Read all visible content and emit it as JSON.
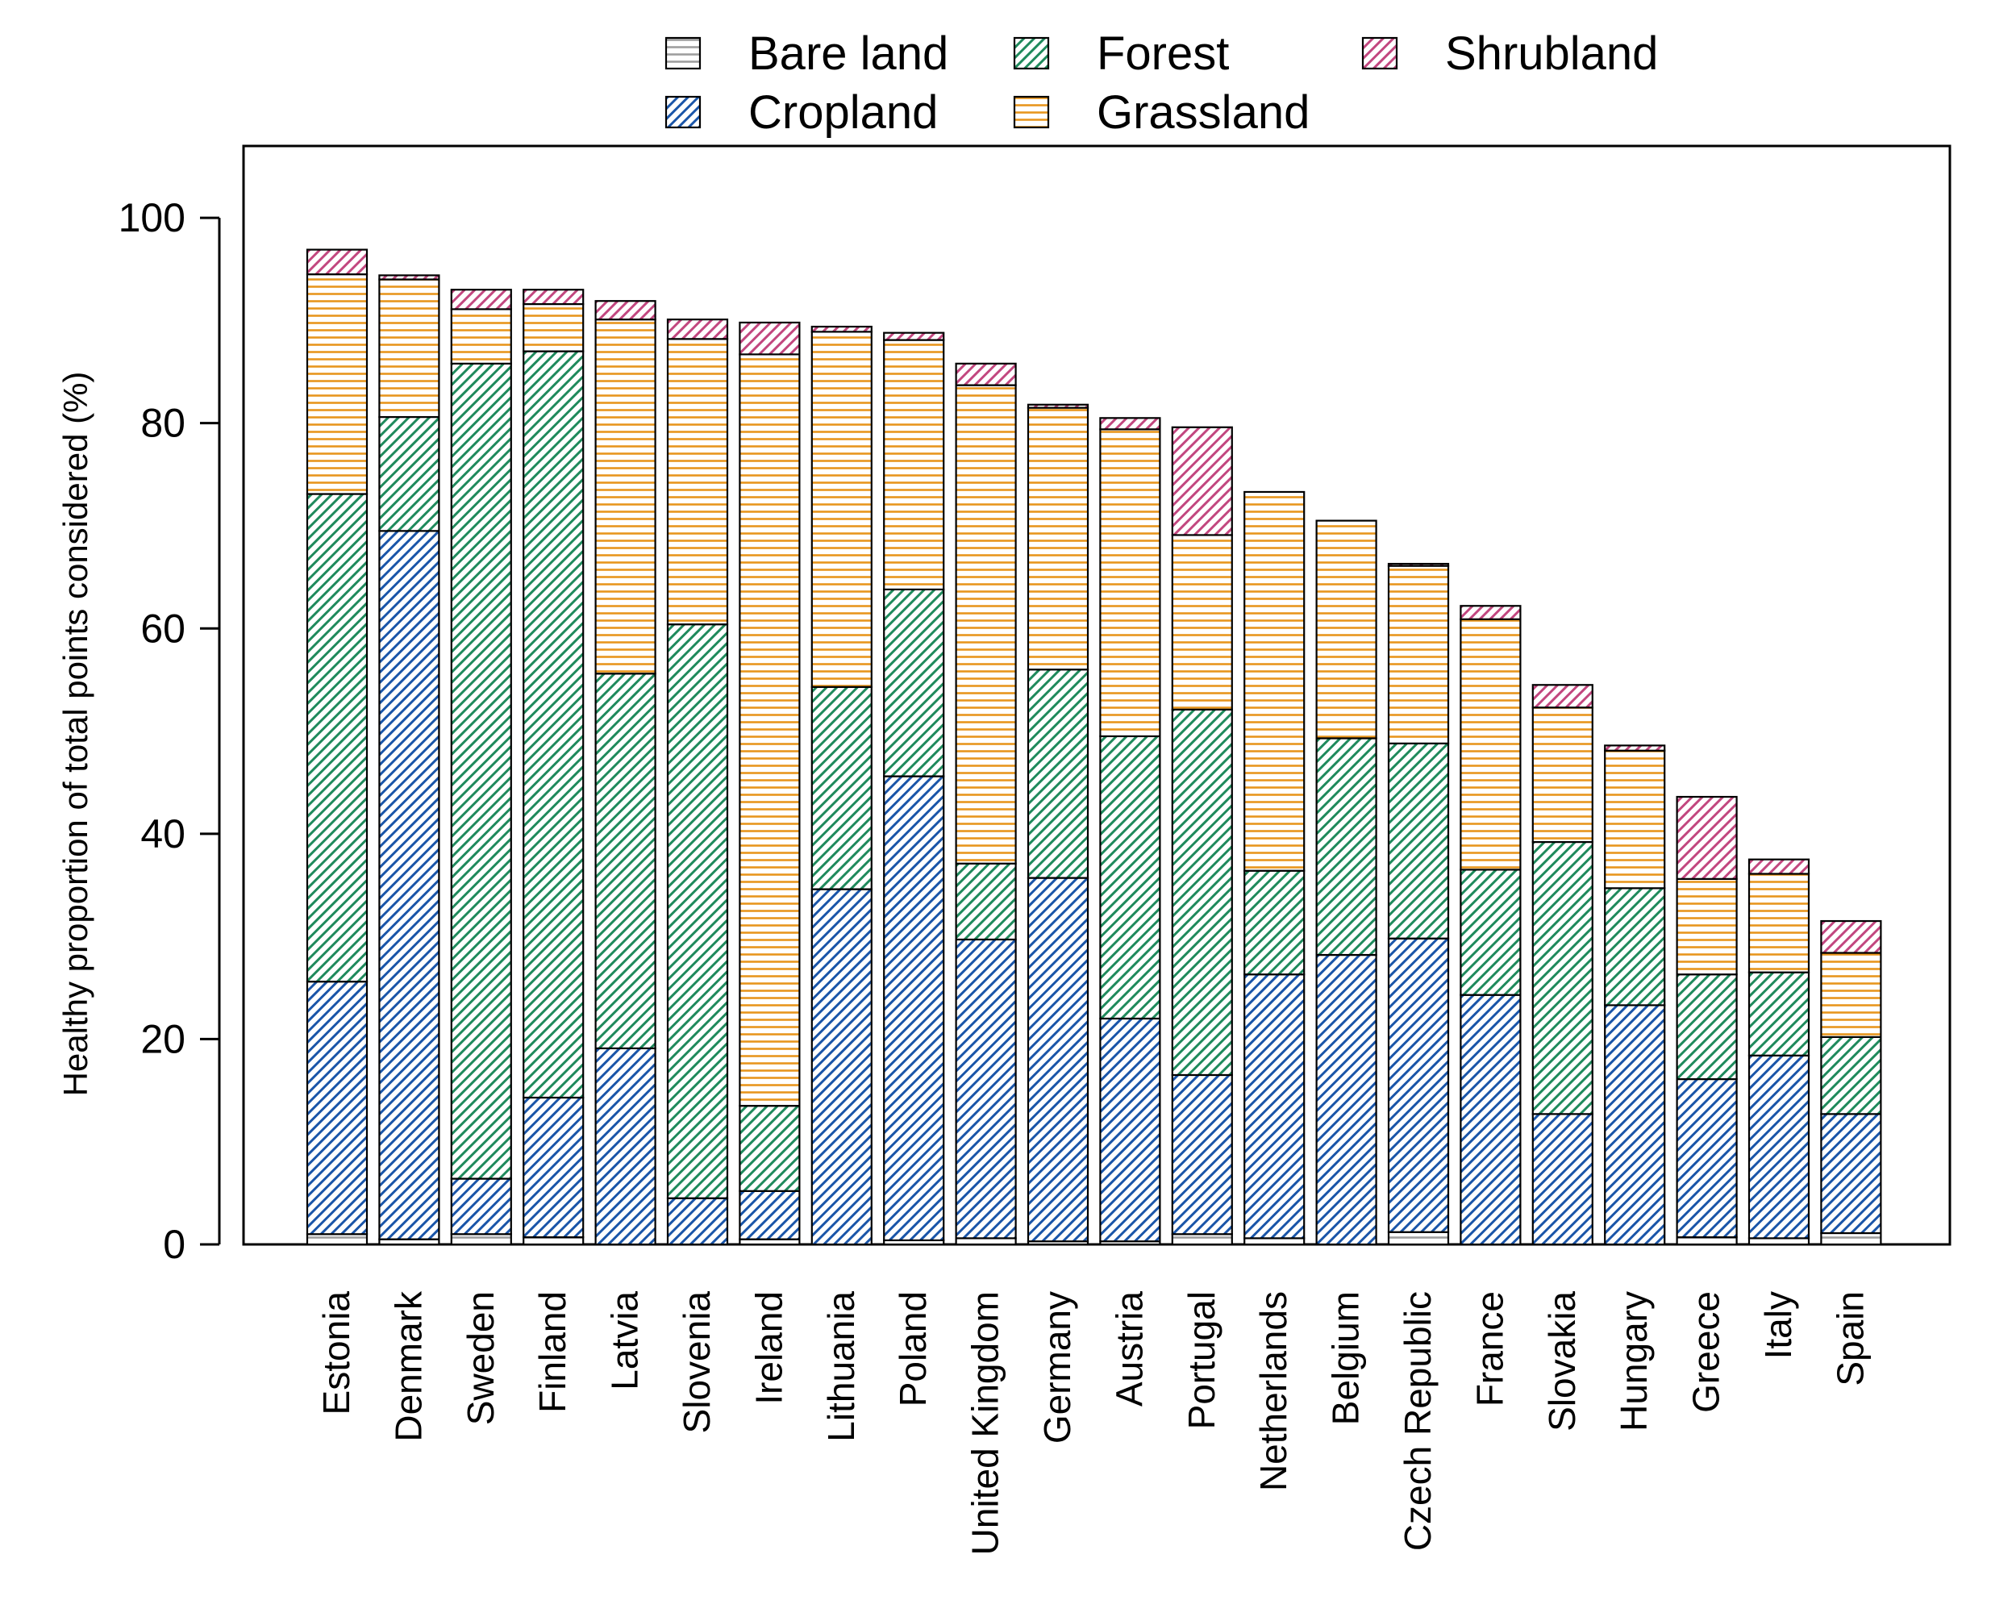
{
  "chart_data": {
    "type": "bar",
    "stacked": true,
    "ylabel": "Healthy proportion of total points considered (%)",
    "xlabel": "",
    "ylim": [
      0,
      107
    ],
    "yticks": [
      0,
      20,
      40,
      60,
      80,
      100
    ],
    "grid": false,
    "legend_position": "top, above plot",
    "categories": [
      "Estonia",
      "Denmark",
      "Sweden",
      "Finland",
      "Latvia",
      "Slovenia",
      "Ireland",
      "Lithuania",
      "Poland",
      "United Kingdom",
      "Germany",
      "Austria",
      "Portugal",
      "Netherlands",
      "Belgium",
      "Czech Republic",
      "France",
      "Slovakia",
      "Hungary",
      "Greece",
      "Italy",
      "Spain"
    ],
    "series": [
      {
        "name": "Bare land",
        "color": "#9e9e9e",
        "pattern": "horizontal",
        "values": [
          1.0,
          0.5,
          1.0,
          0.7,
          0.0,
          0.0,
          0.5,
          0.0,
          0.4,
          0.6,
          0.3,
          0.3,
          1.0,
          0.6,
          0.0,
          1.2,
          0.0,
          0.0,
          0.0,
          0.7,
          0.6,
          1.1
        ]
      },
      {
        "name": "Cropland",
        "color": "#1a55a8",
        "pattern": "diagonal",
        "values": [
          24.6,
          69.0,
          5.4,
          13.6,
          19.1,
          4.5,
          4.7,
          34.6,
          45.2,
          29.1,
          35.4,
          21.7,
          15.5,
          25.7,
          28.2,
          28.6,
          24.3,
          12.7,
          23.3,
          15.4,
          17.8,
          11.6
        ]
      },
      {
        "name": "Forest",
        "color": "#1f8a5c",
        "pattern": "diagonal",
        "values": [
          47.5,
          11.1,
          79.4,
          72.7,
          36.5,
          55.9,
          8.3,
          19.7,
          18.2,
          7.4,
          20.3,
          27.5,
          35.6,
          10.1,
          21.1,
          19.0,
          12.2,
          26.5,
          11.4,
          10.2,
          8.1,
          7.5
        ]
      },
      {
        "name": "Grassland",
        "color": "#e8961e",
        "pattern": "horizontal",
        "values": [
          21.4,
          13.4,
          5.3,
          4.6,
          34.5,
          27.8,
          73.2,
          34.6,
          24.3,
          46.6,
          25.5,
          29.9,
          17.0,
          36.9,
          21.2,
          17.3,
          24.4,
          13.1,
          13.4,
          9.3,
          9.6,
          8.2
        ]
      },
      {
        "name": "Shrubland",
        "color": "#c2477f",
        "pattern": "diagonal",
        "values": [
          2.4,
          0.4,
          1.9,
          1.4,
          1.8,
          1.9,
          3.1,
          0.5,
          0.7,
          2.1,
          0.3,
          1.1,
          10.5,
          0.0,
          0.0,
          0.2,
          1.3,
          2.2,
          0.5,
          8.0,
          1.4,
          3.1
        ]
      }
    ]
  },
  "legend": {
    "items": [
      {
        "label": "Bare land",
        "series": 0
      },
      {
        "label": "Forest",
        "series": 2
      },
      {
        "label": "Shrubland",
        "series": 4
      },
      {
        "label": "Cropland",
        "series": 1
      },
      {
        "label": "Grassland",
        "series": 3
      }
    ]
  }
}
